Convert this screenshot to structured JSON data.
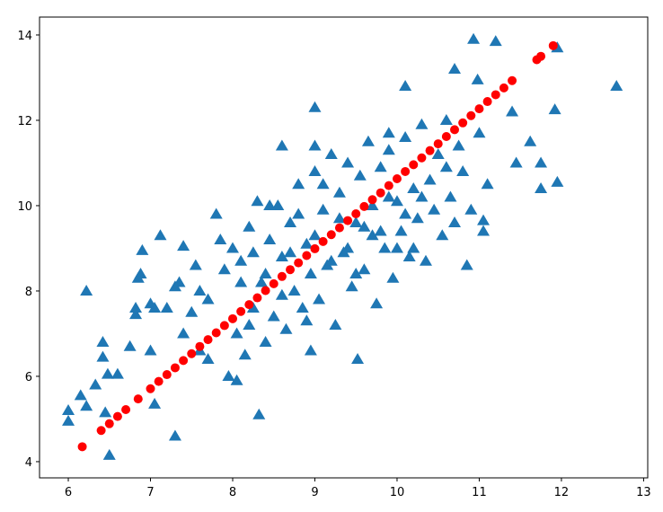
{
  "chart_data": {
    "type": "scatter",
    "xlim": [
      5.65,
      13.05
    ],
    "ylim": [
      3.62,
      14.42
    ],
    "xticks": [
      6,
      7,
      8,
      9,
      10,
      11,
      12,
      13
    ],
    "yticks": [
      4,
      6,
      8,
      10,
      12,
      14
    ],
    "grid": false,
    "series": [
      {
        "color": "#1f77b4",
        "marker": "triangle",
        "x": [
          6.0,
          6.0,
          6.15,
          6.22,
          6.22,
          6.33,
          6.42,
          6.42,
          6.45,
          6.5,
          6.48,
          6.6,
          6.75,
          6.82,
          6.82,
          6.85,
          6.88,
          6.9,
          7.12,
          7.05,
          7.0,
          7.05,
          7.3,
          7.4,
          7.0,
          12.67,
          11.95,
          11.92,
          11.95,
          10.93,
          11.2,
          10.98,
          10.7,
          9.0,
          8.32,
          9.52,
          11.75,
          11.75,
          11.62,
          11.05,
          11.05,
          10.85,
          10.1,
          11.4,
          11.45,
          8.95,
          7.5,
          7.6,
          7.7,
          7.8,
          7.9,
          7.95,
          8.0,
          8.05,
          8.1,
          8.15,
          8.2,
          8.25,
          8.3,
          8.35,
          8.4,
          8.45,
          8.5,
          8.55,
          8.6,
          8.65,
          8.7,
          8.75,
          8.8,
          8.85,
          8.9,
          8.95,
          9.0,
          9.05,
          9.1,
          9.15,
          9.2,
          9.25,
          9.3,
          9.35,
          9.4,
          9.45,
          9.5,
          9.55,
          9.6,
          9.65,
          9.7,
          9.75,
          9.8,
          9.85,
          9.9,
          9.95,
          10.0,
          10.05,
          10.1,
          10.15,
          10.2,
          10.25,
          10.3,
          10.35,
          10.4,
          10.45,
          10.5,
          10.55,
          10.6,
          10.65,
          10.7,
          10.75,
          10.8,
          10.9,
          11.0,
          11.1,
          8.1,
          8.4,
          8.7,
          9.0,
          9.3,
          9.6,
          9.9,
          8.2,
          8.6,
          9.2,
          9.8,
          10.2,
          7.3,
          7.4,
          7.6,
          7.2,
          7.35,
          7.55,
          7.7,
          7.85,
          8.05,
          8.25,
          8.45,
          8.8,
          9.1,
          9.4,
          9.7,
          10.0,
          10.3,
          10.6,
          8.9,
          9.5,
          10.1,
          9.0,
          8.6,
          9.9
        ],
        "values": [
          5.2,
          4.95,
          5.55,
          8.0,
          5.3,
          5.8,
          6.8,
          6.45,
          5.15,
          4.15,
          6.05,
          6.05,
          6.7,
          7.45,
          7.6,
          8.3,
          8.4,
          8.95,
          9.3,
          7.6,
          6.6,
          5.35,
          4.6,
          9.05,
          7.7,
          12.8,
          10.55,
          12.25,
          13.7,
          13.9,
          13.85,
          12.95,
          13.2,
          12.3,
          5.1,
          6.4,
          10.4,
          11.0,
          11.5,
          9.65,
          9.4,
          8.6,
          12.8,
          12.2,
          11.0,
          6.6,
          7.5,
          8.0,
          6.4,
          9.8,
          8.5,
          6.0,
          9.0,
          7.0,
          8.7,
          6.5,
          9.5,
          7.6,
          10.1,
          8.2,
          6.8,
          9.2,
          7.4,
          10.0,
          8.8,
          7.1,
          9.6,
          8.0,
          10.5,
          7.6,
          9.1,
          8.4,
          10.8,
          7.8,
          9.9,
          8.6,
          11.2,
          7.2,
          10.3,
          8.9,
          11.0,
          8.1,
          9.6,
          10.7,
          8.5,
          11.5,
          9.3,
          7.7,
          10.9,
          9.0,
          11.3,
          8.3,
          10.1,
          9.4,
          11.6,
          8.8,
          10.4,
          9.7,
          11.9,
          8.7,
          10.6,
          9.9,
          11.2,
          9.3,
          12.0,
          10.2,
          9.6,
          11.4,
          10.8,
          9.9,
          11.7,
          10.5,
          8.2,
          8.4,
          8.9,
          9.3,
          9.7,
          9.5,
          10.2,
          7.2,
          7.9,
          8.7,
          9.4,
          9.0,
          8.1,
          7.0,
          6.6,
          7.6,
          8.2,
          8.6,
          7.8,
          9.2,
          5.9,
          8.9,
          10.0,
          9.8,
          10.5,
          9.0,
          10.0,
          9.0,
          10.2,
          10.9,
          7.3,
          8.4,
          9.8,
          11.4,
          11.4,
          11.7
        ]
      },
      {
        "color": "#ff0000",
        "marker": "circle",
        "x": [
          6.17,
          6.4,
          6.5,
          6.6,
          6.7,
          6.85,
          7.0,
          7.1,
          7.2,
          7.3,
          7.4,
          7.5,
          7.6,
          7.7,
          7.8,
          7.9,
          8.0,
          8.1,
          8.2,
          8.3,
          8.4,
          8.5,
          8.6,
          8.7,
          8.8,
          8.9,
          9.0,
          9.1,
          9.2,
          9.3,
          9.4,
          9.5,
          9.6,
          9.7,
          9.8,
          9.9,
          10.0,
          10.1,
          10.2,
          10.3,
          10.4,
          10.5,
          10.6,
          10.7,
          10.8,
          10.9,
          11.0,
          11.1,
          11.2,
          11.3,
          11.4,
          11.7,
          11.75,
          11.9
        ],
        "values": [
          4.35,
          4.73,
          4.89,
          5.06,
          5.22,
          5.47,
          5.71,
          5.88,
          6.04,
          6.2,
          6.37,
          6.53,
          6.7,
          6.86,
          7.02,
          7.19,
          7.35,
          7.52,
          7.68,
          7.84,
          8.01,
          8.17,
          8.34,
          8.5,
          8.66,
          8.83,
          8.99,
          9.16,
          9.32,
          9.48,
          9.65,
          9.81,
          9.98,
          10.14,
          10.3,
          10.47,
          10.63,
          10.8,
          10.96,
          11.12,
          11.29,
          11.45,
          11.62,
          11.78,
          11.94,
          12.11,
          12.27,
          12.44,
          12.6,
          12.76,
          12.93,
          13.42,
          13.5,
          13.75
        ]
      }
    ]
  }
}
